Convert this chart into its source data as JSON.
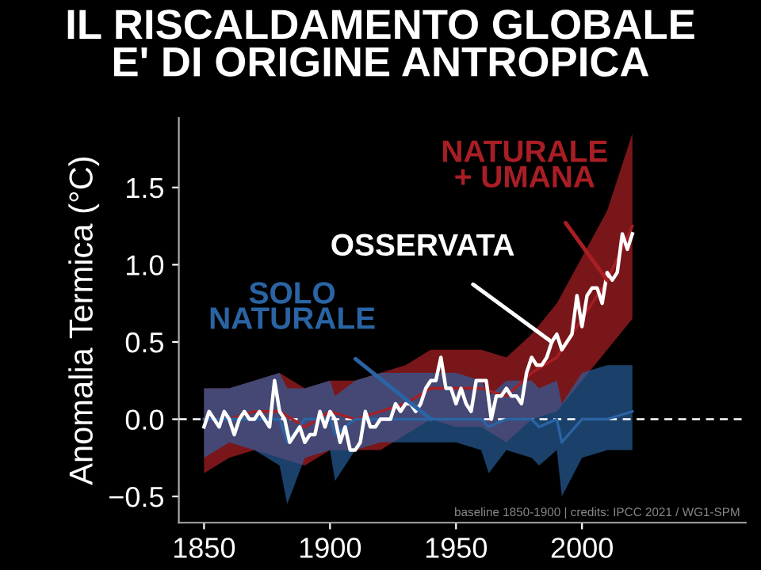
{
  "chart_data": {
    "type": "line",
    "title": "IL RISCALDAMENTO GLOBALE\nE' DI ORIGINE ANTROPICA",
    "ylabel": "Anomalia Termica (°C)",
    "xlim": [
      1840,
      2065
    ],
    "xticks": [
      1850,
      1900,
      1950,
      2000
    ],
    "ylim": [
      -0.67,
      1.95
    ],
    "yticks": [
      {
        "value": -0.5,
        "label": "−0.5"
      },
      {
        "value": 0,
        "label": "0.0"
      },
      {
        "value": 0.5,
        "label": "0.5"
      },
      {
        "value": 1,
        "label": "1.0"
      },
      {
        "value": 1.5,
        "label": "1.5"
      }
    ],
    "grid": false,
    "legend": false,
    "ref_lines": [
      {
        "axis": "y",
        "value": 0,
        "color": "#ffffff",
        "line_style": "dashed"
      }
    ],
    "annotations": [
      "baseline 1850-1900 | credits: IPCC 2021 / WG1-SPM"
    ],
    "series": [
      {
        "name": "NATURALE\n+ UMANA",
        "color": "#a81e24",
        "values": [
          0.0,
          0.0,
          0.05,
          0.05,
          -0.05,
          0.05,
          0.0,
          0.05,
          0.1,
          0.2,
          0.2,
          0.2,
          0.15,
          0.3,
          0.4,
          0.65,
          0.9,
          1.25
        ],
        "x": [
          1850,
          1860,
          1870,
          1880,
          1890,
          1900,
          1910,
          1920,
          1930,
          1940,
          1950,
          1960,
          1970,
          1980,
          1990,
          2000,
          2010,
          2020
        ],
        "lower": [
          -0.35,
          -0.25,
          -0.2,
          -0.25,
          -0.3,
          -0.2,
          -0.2,
          -0.2,
          -0.1,
          0.0,
          -0.05,
          -0.05,
          -0.15,
          0.0,
          0.05,
          0.25,
          0.45,
          0.65
        ],
        "upper": [
          0.2,
          0.2,
          0.25,
          0.3,
          0.2,
          0.25,
          0.25,
          0.3,
          0.35,
          0.45,
          0.45,
          0.45,
          0.4,
          0.55,
          0.75,
          1.05,
          1.35,
          1.85
        ]
      },
      {
        "name": "SOLO\nNATURALE",
        "color": "#2a64a4",
        "values": [
          0.0,
          0.0,
          0.0,
          0.0,
          -0.15,
          0.0,
          0.0,
          -0.1,
          0.0,
          0.0,
          0.0,
          0.0,
          0.0,
          0.0,
          -0.05,
          0.0,
          0.0,
          -0.05,
          0.0,
          -0.15,
          0.0,
          0.0,
          0.05
        ],
        "x": [
          1850,
          1860,
          1870,
          1880,
          1883,
          1890,
          1900,
          1902,
          1910,
          1920,
          1930,
          1940,
          1950,
          1960,
          1963,
          1970,
          1980,
          1983,
          1990,
          1992,
          2000,
          2010,
          2020
        ],
        "lower": [
          -0.25,
          -0.15,
          -0.2,
          -0.3,
          -0.55,
          -0.25,
          -0.2,
          -0.4,
          -0.2,
          -0.15,
          -0.15,
          -0.15,
          -0.15,
          -0.2,
          -0.35,
          -0.2,
          -0.25,
          -0.3,
          -0.2,
          -0.5,
          -0.25,
          -0.2,
          -0.2
        ],
        "upper": [
          0.2,
          0.2,
          0.25,
          0.3,
          0.2,
          0.2,
          0.25,
          0.15,
          0.25,
          0.3,
          0.3,
          0.3,
          0.3,
          0.25,
          0.15,
          0.25,
          0.25,
          0.2,
          0.25,
          0.1,
          0.3,
          0.35,
          0.35
        ]
      },
      {
        "name": "OSSERVATA",
        "color": "#ffffff",
        "x": [
          1850,
          1852,
          1854,
          1856,
          1858,
          1860,
          1862,
          1864,
          1866,
          1868,
          1870,
          1872,
          1874,
          1876,
          1878,
          1880,
          1882,
          1884,
          1886,
          1888,
          1890,
          1892,
          1894,
          1896,
          1898,
          1900,
          1902,
          1904,
          1906,
          1908,
          1910,
          1912,
          1914,
          1916,
          1918,
          1920,
          1922,
          1924,
          1926,
          1928,
          1930,
          1932,
          1934,
          1936,
          1938,
          1940,
          1942,
          1944,
          1946,
          1948,
          1950,
          1952,
          1954,
          1956,
          1958,
          1960,
          1962,
          1964,
          1966,
          1968,
          1970,
          1972,
          1974,
          1976,
          1978,
          1980,
          1982,
          1984,
          1986,
          1988,
          1990,
          1992,
          1994,
          1996,
          1998,
          2000,
          2002,
          2004,
          2006,
          2008,
          2010,
          2012,
          2014,
          2016,
          2018,
          2020
        ],
        "values": [
          -0.05,
          0.05,
          0.0,
          -0.05,
          0.05,
          0.0,
          -0.1,
          0.0,
          0.05,
          0.0,
          0.0,
          0.05,
          0.0,
          -0.05,
          0.25,
          0.05,
          0.0,
          -0.15,
          -0.1,
          -0.05,
          -0.15,
          -0.1,
          -0.1,
          0.05,
          -0.05,
          0.05,
          0.0,
          -0.15,
          -0.05,
          -0.2,
          -0.2,
          -0.15,
          0.05,
          -0.05,
          -0.05,
          0.0,
          0.0,
          0.0,
          0.1,
          0.05,
          0.1,
          0.1,
          0.05,
          0.1,
          0.2,
          0.25,
          0.25,
          0.4,
          0.2,
          0.2,
          0.1,
          0.2,
          0.1,
          0.05,
          0.25,
          0.25,
          0.25,
          0.0,
          0.15,
          0.15,
          0.2,
          0.15,
          0.15,
          0.1,
          0.3,
          0.4,
          0.35,
          0.35,
          0.4,
          0.5,
          0.55,
          0.45,
          0.5,
          0.55,
          0.8,
          0.6,
          0.8,
          0.85,
          0.85,
          0.75,
          0.95,
          0.9,
          0.95,
          1.2,
          1.1,
          1.2
        ]
      }
    ]
  }
}
